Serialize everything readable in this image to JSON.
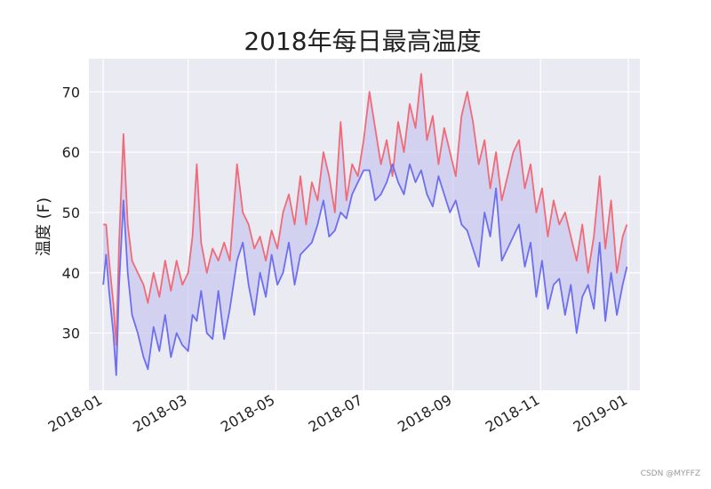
{
  "chart_data": {
    "type": "line",
    "title": "2018年每日最高温度",
    "xlabel": "",
    "ylabel": "温度 (F)",
    "ylim": [
      20.5,
      75.5
    ],
    "yticks": [
      30,
      40,
      50,
      60,
      70
    ],
    "x_range": [
      "2017-12-22",
      "2019-01-09"
    ],
    "xticks": [
      "2018-01",
      "2018-03",
      "2018-05",
      "2018-07",
      "2018-09",
      "2018-11",
      "2019-01"
    ],
    "grid": true,
    "fill_between": true,
    "colors": {
      "high": "#f06a78",
      "low": "#6e6ef0",
      "fill": "#c8c8f0",
      "background": "#eaeaf2",
      "grid": "#ffffff"
    },
    "series": [
      {
        "key": "high",
        "dates": [
          "2018-01-01",
          "2018-01-03",
          "2018-01-05",
          "2018-01-08",
          "2018-01-10",
          "2018-01-12",
          "2018-01-15",
          "2018-01-18",
          "2018-01-21",
          "2018-01-25",
          "2018-01-29",
          "2018-02-01",
          "2018-02-05",
          "2018-02-09",
          "2018-02-13",
          "2018-02-17",
          "2018-02-21",
          "2018-02-25",
          "2018-03-01",
          "2018-03-04",
          "2018-03-07",
          "2018-03-10",
          "2018-03-14",
          "2018-03-18",
          "2018-03-22",
          "2018-03-26",
          "2018-03-30",
          "2018-04-04",
          "2018-04-08",
          "2018-04-12",
          "2018-04-16",
          "2018-04-20",
          "2018-04-24",
          "2018-04-28",
          "2018-05-02",
          "2018-05-06",
          "2018-05-10",
          "2018-05-14",
          "2018-05-18",
          "2018-05-22",
          "2018-05-26",
          "2018-05-30",
          "2018-06-03",
          "2018-06-07",
          "2018-06-11",
          "2018-06-15",
          "2018-06-19",
          "2018-06-23",
          "2018-06-27",
          "2018-07-01",
          "2018-07-05",
          "2018-07-09",
          "2018-07-13",
          "2018-07-17",
          "2018-07-21",
          "2018-07-25",
          "2018-07-29",
          "2018-08-02",
          "2018-08-06",
          "2018-08-10",
          "2018-08-14",
          "2018-08-18",
          "2018-08-22",
          "2018-08-26",
          "2018-08-30",
          "2018-09-03",
          "2018-09-07",
          "2018-09-11",
          "2018-09-15",
          "2018-09-19",
          "2018-09-23",
          "2018-09-27",
          "2018-10-01",
          "2018-10-05",
          "2018-10-09",
          "2018-10-13",
          "2018-10-17",
          "2018-10-21",
          "2018-10-25",
          "2018-10-29",
          "2018-11-02",
          "2018-11-06",
          "2018-11-10",
          "2018-11-14",
          "2018-11-18",
          "2018-11-22",
          "2018-11-26",
          "2018-11-30",
          "2018-12-04",
          "2018-12-08",
          "2018-12-12",
          "2018-12-16",
          "2018-12-20",
          "2018-12-24",
          "2018-12-28",
          "2018-12-31"
        ],
        "values": [
          48,
          48,
          42,
          35,
          28,
          45,
          63,
          48,
          42,
          40,
          38,
          35,
          40,
          36,
          42,
          37,
          42,
          38,
          40,
          46,
          58,
          45,
          40,
          44,
          42,
          45,
          42,
          58,
          50,
          48,
          44,
          46,
          42,
          47,
          44,
          50,
          53,
          48,
          56,
          48,
          55,
          52,
          60,
          56,
          50,
          65,
          52,
          58,
          56,
          62,
          70,
          64,
          58,
          62,
          56,
          65,
          60,
          68,
          64,
          73,
          62,
          66,
          58,
          64,
          60,
          56,
          66,
          70,
          65,
          58,
          62,
          54,
          60,
          52,
          56,
          60,
          62,
          54,
          58,
          50,
          54,
          46,
          52,
          48,
          50,
          46,
          42,
          48,
          40,
          46,
          56,
          44,
          52,
          40,
          46,
          48
        ]
      },
      {
        "key": "low",
        "dates": [
          "2018-01-01",
          "2018-01-03",
          "2018-01-05",
          "2018-01-08",
          "2018-01-10",
          "2018-01-12",
          "2018-01-15",
          "2018-01-18",
          "2018-01-21",
          "2018-01-25",
          "2018-01-29",
          "2018-02-01",
          "2018-02-05",
          "2018-02-09",
          "2018-02-13",
          "2018-02-17",
          "2018-02-21",
          "2018-02-25",
          "2018-03-01",
          "2018-03-04",
          "2018-03-07",
          "2018-03-10",
          "2018-03-14",
          "2018-03-18",
          "2018-03-22",
          "2018-03-26",
          "2018-03-30",
          "2018-04-04",
          "2018-04-08",
          "2018-04-12",
          "2018-04-16",
          "2018-04-20",
          "2018-04-24",
          "2018-04-28",
          "2018-05-02",
          "2018-05-06",
          "2018-05-10",
          "2018-05-14",
          "2018-05-18",
          "2018-05-22",
          "2018-05-26",
          "2018-05-30",
          "2018-06-03",
          "2018-06-07",
          "2018-06-11",
          "2018-06-15",
          "2018-06-19",
          "2018-06-23",
          "2018-06-27",
          "2018-07-01",
          "2018-07-05",
          "2018-07-09",
          "2018-07-13",
          "2018-07-17",
          "2018-07-21",
          "2018-07-25",
          "2018-07-29",
          "2018-08-02",
          "2018-08-06",
          "2018-08-10",
          "2018-08-14",
          "2018-08-18",
          "2018-08-22",
          "2018-08-26",
          "2018-08-30",
          "2018-09-03",
          "2018-09-07",
          "2018-09-11",
          "2018-09-15",
          "2018-09-19",
          "2018-09-23",
          "2018-09-27",
          "2018-10-01",
          "2018-10-05",
          "2018-10-09",
          "2018-10-13",
          "2018-10-17",
          "2018-10-21",
          "2018-10-25",
          "2018-10-29",
          "2018-11-02",
          "2018-11-06",
          "2018-11-10",
          "2018-11-14",
          "2018-11-18",
          "2018-11-22",
          "2018-11-26",
          "2018-11-30",
          "2018-12-04",
          "2018-12-08",
          "2018-12-12",
          "2018-12-16",
          "2018-12-20",
          "2018-12-24",
          "2018-12-28",
          "2018-12-31"
        ],
        "values": [
          38,
          43,
          37,
          30,
          23,
          38,
          52,
          40,
          33,
          30,
          26,
          24,
          31,
          27,
          33,
          26,
          30,
          28,
          27,
          33,
          32,
          37,
          30,
          29,
          37,
          29,
          34,
          42,
          45,
          38,
          33,
          40,
          36,
          43,
          38,
          40,
          45,
          38,
          43,
          44,
          45,
          48,
          52,
          46,
          47,
          50,
          49,
          53,
          55,
          57,
          57,
          52,
          53,
          55,
          58,
          55,
          53,
          58,
          55,
          57,
          53,
          51,
          56,
          53,
          50,
          52,
          48,
          47,
          44,
          41,
          50,
          46,
          54,
          42,
          44,
          46,
          48,
          41,
          45,
          36,
          42,
          34,
          38,
          39,
          33,
          38,
          30,
          36,
          38,
          34,
          45,
          32,
          40,
          33,
          38,
          41
        ]
      }
    ]
  },
  "watermark": "CSDN @MYFFZ"
}
